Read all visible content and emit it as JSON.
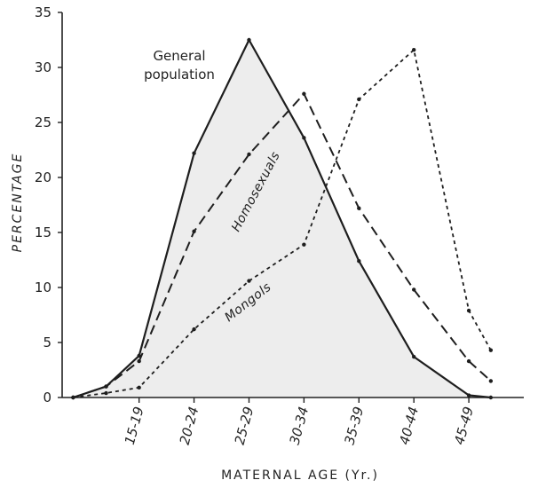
{
  "chart_data": {
    "type": "line",
    "title": "",
    "xlabel": "MATERNAL AGE (Yr.)",
    "ylabel": "PERCENTAGE",
    "ylim": [
      0,
      35
    ],
    "yticks": [
      0,
      5,
      10,
      15,
      20,
      25,
      30,
      35
    ],
    "categories": [
      "15-19",
      "20-24",
      "25-29",
      "30-34",
      "35-39",
      "40-44",
      "45-49"
    ],
    "grid": false,
    "series": [
      {
        "name": "General population",
        "style": "solid",
        "x": [
          11,
          14,
          17,
          22,
          27,
          32,
          37,
          42,
          47,
          49
        ],
        "y": [
          0,
          1.0,
          3.8,
          22.2,
          32.5,
          23.6,
          12.4,
          3.7,
          0.2,
          0.0
        ]
      },
      {
        "name": "Homosexuals",
        "style": "dashed",
        "x": [
          11,
          14,
          17,
          22,
          27,
          32,
          37,
          42,
          47,
          49
        ],
        "y": [
          0,
          1.0,
          3.3,
          15.1,
          22.1,
          27.6,
          17.2,
          9.8,
          3.3,
          1.5
        ]
      },
      {
        "name": "Mongols",
        "style": "dotted",
        "x": [
          11,
          14,
          17,
          22,
          27,
          32,
          37,
          42,
          47,
          49
        ],
        "y": [
          0,
          0.4,
          0.9,
          6.2,
          10.6,
          13.9,
          27.1,
          31.6,
          7.9,
          4.3
        ]
      }
    ]
  }
}
